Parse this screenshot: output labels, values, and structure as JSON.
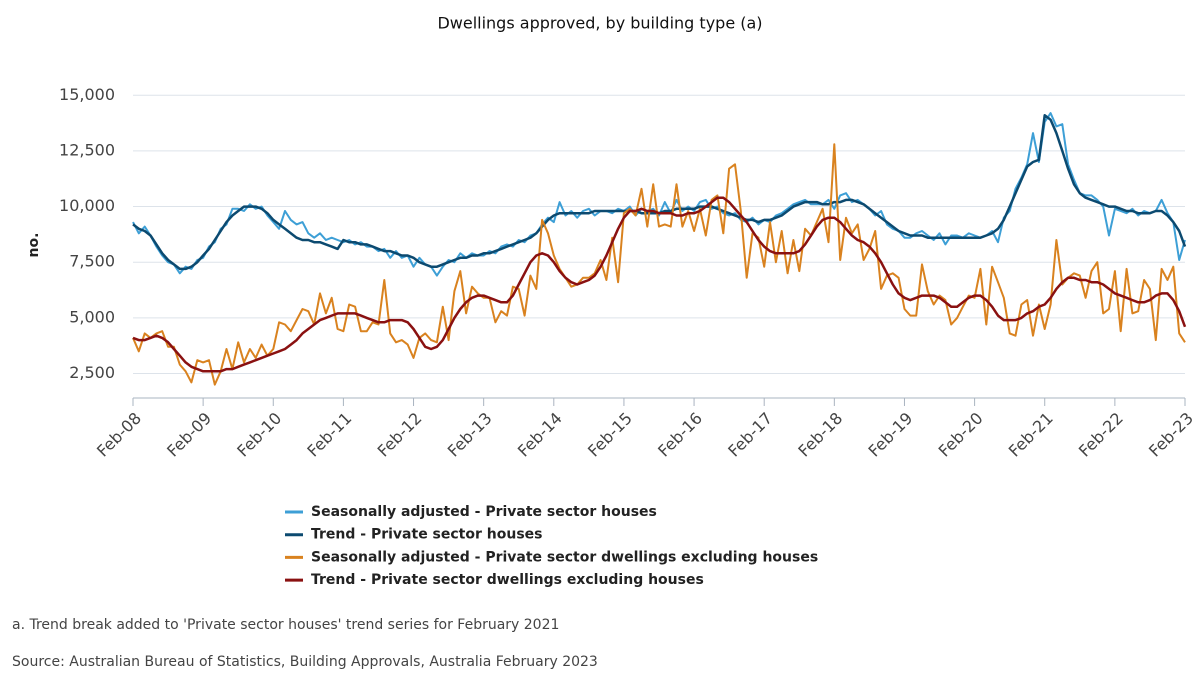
{
  "chart_data": {
    "type": "line",
    "title": "Dwellings approved, by building type (a)",
    "y_label": "no.",
    "footnote": "a. Trend break added to 'Private sector houses' trend series for February 2021",
    "source": "Source: Australian Bureau of Statistics, Building Approvals, Australia February 2023",
    "grid": true,
    "ylim": [
      1400,
      16000
    ],
    "yticks": [
      {
        "value": 2500,
        "label": "2,500"
      },
      {
        "value": 5000,
        "label": "5,000"
      },
      {
        "value": 7500,
        "label": "7,500"
      },
      {
        "value": 10000,
        "label": "10,000"
      },
      {
        "value": 12500,
        "label": "12,500"
      },
      {
        "value": 15000,
        "label": "15,000"
      }
    ],
    "categories": [
      "Feb-08",
      null,
      null,
      null,
      null,
      null,
      null,
      null,
      null,
      null,
      null,
      null,
      "Feb-09",
      null,
      null,
      null,
      null,
      null,
      null,
      null,
      null,
      null,
      null,
      null,
      "Feb-10",
      null,
      null,
      null,
      null,
      null,
      null,
      null,
      null,
      null,
      null,
      null,
      "Feb-11",
      null,
      null,
      null,
      null,
      null,
      null,
      null,
      null,
      null,
      null,
      null,
      "Feb-12",
      null,
      null,
      null,
      null,
      null,
      null,
      null,
      null,
      null,
      null,
      null,
      "Feb-13",
      null,
      null,
      null,
      null,
      null,
      null,
      null,
      null,
      null,
      null,
      null,
      "Feb-14",
      null,
      null,
      null,
      null,
      null,
      null,
      null,
      null,
      null,
      null,
      null,
      "Feb-15",
      null,
      null,
      null,
      null,
      null,
      null,
      null,
      null,
      null,
      null,
      null,
      "Feb-16",
      null,
      null,
      null,
      null,
      null,
      null,
      null,
      null,
      null,
      null,
      null,
      "Feb-17",
      null,
      null,
      null,
      null,
      null,
      null,
      null,
      null,
      null,
      null,
      null,
      "Feb-18",
      null,
      null,
      null,
      null,
      null,
      null,
      null,
      null,
      null,
      null,
      null,
      "Feb-19",
      null,
      null,
      null,
      null,
      null,
      null,
      null,
      null,
      null,
      null,
      null,
      "Feb-20",
      null,
      null,
      null,
      null,
      null,
      null,
      null,
      null,
      null,
      null,
      null,
      "Feb-21",
      null,
      null,
      null,
      null,
      null,
      null,
      null,
      null,
      null,
      null,
      null,
      "Feb-22",
      null,
      null,
      null,
      null,
      null,
      null,
      null,
      null,
      null,
      null,
      null,
      "Feb-23"
    ],
    "series": [
      {
        "name": "Seasonally adjusted - Private sector houses",
        "color": "#3d9fd6",
        "width": 2,
        "values": [
          9300,
          8800,
          9100,
          8700,
          8200,
          7800,
          7500,
          7400,
          7000,
          7300,
          7200,
          7600,
          7700,
          8200,
          8400,
          9000,
          9200,
          9900,
          9900,
          9800,
          10100,
          9900,
          10000,
          9600,
          9300,
          9000,
          9800,
          9400,
          9200,
          9300,
          8800,
          8600,
          8800,
          8500,
          8600,
          8500,
          8400,
          8500,
          8300,
          8400,
          8200,
          8200,
          8000,
          8100,
          7700,
          8000,
          7700,
          7800,
          7300,
          7700,
          7400,
          7300,
          6900,
          7300,
          7600,
          7500,
          7900,
          7700,
          7900,
          7800,
          7800,
          8000,
          7900,
          8200,
          8300,
          8200,
          8500,
          8400,
          8700,
          8800,
          9200,
          9500,
          9300,
          10200,
          9600,
          9800,
          9500,
          9800,
          9900,
          9600,
          9800,
          9800,
          9700,
          9900,
          9800,
          10000,
          9600,
          9900,
          9800,
          9900,
          9600,
          10200,
          9700,
          10300,
          9800,
          10000,
          9800,
          10200,
          10300,
          9900,
          10000,
          9700,
          9600,
          9700,
          9400,
          9300,
          9500,
          9200,
          9400,
          9300,
          9600,
          9700,
          9900,
          10100,
          10200,
          10300,
          10100,
          10100,
          10100,
          10300,
          9900,
          10500,
          10600,
          10200,
          10300,
          10100,
          9900,
          9600,
          9800,
          9200,
          9000,
          8900,
          8600,
          8600,
          8800,
          8900,
          8700,
          8500,
          8800,
          8300,
          8700,
          8700,
          8600,
          8800,
          8700,
          8600,
          8700,
          8900,
          8400,
          9500,
          9800,
          10800,
          11300,
          11900,
          13300,
          12000,
          13800,
          14200,
          13600,
          13700,
          11900,
          11200,
          10600,
          10500,
          10500,
          10300,
          10000,
          8700,
          9900,
          9800,
          9700,
          9900,
          9600,
          9800,
          9700,
          9800,
          10300,
          9700,
          9300,
          7600,
          8500
        ]
      },
      {
        "name": "Trend - Private sector houses",
        "color": "#0c4a70",
        "width": 2.5,
        "values": [
          9200,
          9000,
          8900,
          8700,
          8300,
          7900,
          7600,
          7400,
          7200,
          7200,
          7300,
          7500,
          7800,
          8100,
          8500,
          8900,
          9300,
          9600,
          9800,
          10000,
          10000,
          10000,
          9900,
          9700,
          9400,
          9200,
          9000,
          8800,
          8600,
          8500,
          8500,
          8400,
          8400,
          8300,
          8200,
          8100,
          8500,
          8400,
          8400,
          8300,
          8300,
          8200,
          8100,
          8000,
          8000,
          7900,
          7800,
          7800,
          7700,
          7500,
          7400,
          7300,
          7300,
          7400,
          7500,
          7600,
          7700,
          7700,
          7800,
          7800,
          7900,
          7900,
          8000,
          8100,
          8200,
          8300,
          8400,
          8500,
          8600,
          8800,
          9100,
          9400,
          9600,
          9700,
          9700,
          9700,
          9700,
          9700,
          9700,
          9800,
          9800,
          9800,
          9800,
          9800,
          9800,
          9800,
          9800,
          9700,
          9700,
          9700,
          9700,
          9800,
          9800,
          9900,
          9900,
          9900,
          9900,
          10000,
          10000,
          10000,
          9900,
          9800,
          9700,
          9600,
          9500,
          9400,
          9400,
          9300,
          9400,
          9400,
          9500,
          9600,
          9800,
          10000,
          10100,
          10200,
          10200,
          10200,
          10100,
          10100,
          10200,
          10200,
          10300,
          10300,
          10200,
          10100,
          9900,
          9700,
          9500,
          9300,
          9100,
          8900,
          8800,
          8700,
          8700,
          8700,
          8600,
          8600,
          8600,
          8600,
          8600,
          8600,
          8600,
          8600,
          8600,
          8600,
          8700,
          8800,
          9000,
          9400,
          10000,
          10600,
          11200,
          11800,
          12000,
          12100,
          14100,
          13900,
          13300,
          12500,
          11700,
          11000,
          10600,
          10400,
          10300,
          10200,
          10100,
          10000,
          10000,
          9900,
          9800,
          9800,
          9700,
          9700,
          9700,
          9800,
          9800,
          9600,
          9300,
          8900,
          8200
        ]
      },
      {
        "name": "Seasonally adjusted - Private sector dwellings excluding houses",
        "color": "#d9821f",
        "width": 2,
        "values": [
          4100,
          3500,
          4300,
          4100,
          4300,
          4400,
          3700,
          3700,
          2900,
          2600,
          2100,
          3100,
          3000,
          3100,
          2000,
          2600,
          3600,
          2700,
          3900,
          3000,
          3600,
          3200,
          3800,
          3300,
          3600,
          4800,
          4700,
          4400,
          4900,
          5400,
          5300,
          4700,
          6100,
          5200,
          5900,
          4500,
          4400,
          5600,
          5500,
          4400,
          4400,
          4800,
          4700,
          6700,
          4300,
          3900,
          4000,
          3800,
          3200,
          4100,
          4300,
          4000,
          3900,
          5500,
          4000,
          6200,
          7100,
          5200,
          6400,
          6100,
          5900,
          5900,
          4800,
          5300,
          5100,
          6400,
          6300,
          5100,
          6900,
          6300,
          9400,
          8800,
          7800,
          7200,
          6800,
          6400,
          6500,
          6800,
          6800,
          7000,
          7600,
          6700,
          8600,
          6600,
          9700,
          9900,
          9600,
          10800,
          9100,
          11000,
          9100,
          9200,
          9100,
          11000,
          9100,
          9800,
          8900,
          9900,
          8700,
          10300,
          10500,
          8800,
          11700,
          11900,
          9800,
          6800,
          8800,
          8600,
          7300,
          9300,
          7500,
          8900,
          7000,
          8500,
          7100,
          9000,
          8700,
          9300,
          9900,
          8400,
          12800,
          7600,
          9500,
          8800,
          9200,
          7600,
          8100,
          8900,
          6300,
          6900,
          7000,
          6800,
          5400,
          5100,
          5100,
          7400,
          6200,
          5600,
          6000,
          5800,
          4700,
          5000,
          5500,
          6000,
          5900,
          7200,
          4700,
          7300,
          6600,
          5900,
          4300,
          4200,
          5600,
          5800,
          4200,
          5600,
          4500,
          5600,
          8500,
          6500,
          6800,
          7000,
          6900,
          5900,
          7100,
          7500,
          5200,
          5400,
          7100,
          4400,
          7200,
          5200,
          5300,
          6700,
          6300,
          4000,
          7200,
          6700,
          7300,
          4300,
          3900
        ]
      },
      {
        "name": "Trend - Private sector dwellings excluding houses",
        "color": "#8a1111",
        "width": 2.5,
        "values": [
          4100,
          4000,
          4000,
          4100,
          4200,
          4100,
          3900,
          3600,
          3300,
          3000,
          2800,
          2700,
          2600,
          2600,
          2600,
          2600,
          2700,
          2700,
          2800,
          2900,
          3000,
          3100,
          3200,
          3300,
          3400,
          3500,
          3600,
          3800,
          4000,
          4300,
          4500,
          4700,
          4900,
          5000,
          5100,
          5200,
          5200,
          5200,
          5200,
          5100,
          5000,
          4900,
          4800,
          4800,
          4900,
          4900,
          4900,
          4800,
          4500,
          4100,
          3700,
          3600,
          3700,
          4000,
          4500,
          5000,
          5400,
          5700,
          5900,
          6000,
          6000,
          5900,
          5800,
          5700,
          5700,
          6000,
          6500,
          7000,
          7500,
          7800,
          7900,
          7800,
          7500,
          7100,
          6800,
          6600,
          6500,
          6600,
          6700,
          6900,
          7300,
          7800,
          8400,
          9000,
          9500,
          9800,
          9800,
          9900,
          9800,
          9800,
          9700,
          9700,
          9700,
          9600,
          9600,
          9700,
          9700,
          9800,
          10000,
          10200,
          10400,
          10400,
          10200,
          9900,
          9600,
          9300,
          8900,
          8500,
          8200,
          8000,
          7900,
          7900,
          7900,
          7900,
          8000,
          8300,
          8700,
          9100,
          9400,
          9500,
          9500,
          9300,
          9000,
          8700,
          8500,
          8400,
          8200,
          7900,
          7500,
          7000,
          6500,
          6100,
          5900,
          5800,
          5900,
          6000,
          6000,
          6000,
          5900,
          5700,
          5500,
          5500,
          5700,
          5900,
          6000,
          6000,
          5800,
          5500,
          5100,
          4900,
          4900,
          4900,
          5000,
          5200,
          5300,
          5500,
          5600,
          5900,
          6300,
          6600,
          6800,
          6800,
          6700,
          6700,
          6600,
          6600,
          6500,
          6300,
          6100,
          6000,
          5900,
          5800,
          5700,
          5700,
          5800,
          6000,
          6100,
          6100,
          5800,
          5300,
          4600
        ]
      }
    ]
  }
}
